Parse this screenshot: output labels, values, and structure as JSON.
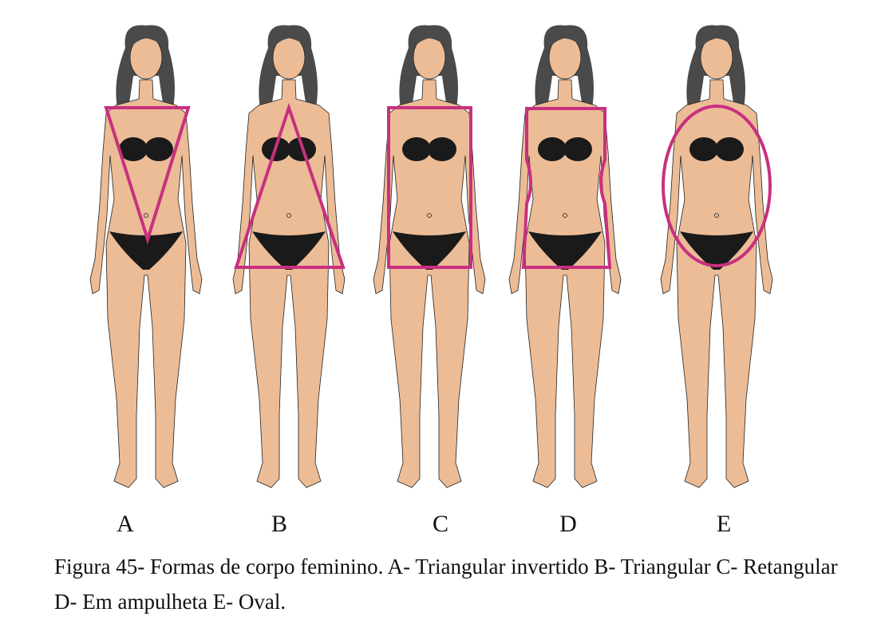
{
  "figures": [
    {
      "label": "A",
      "shape": "inverted-triangle"
    },
    {
      "label": "B",
      "shape": "triangle"
    },
    {
      "label": "C",
      "shape": "rectangle"
    },
    {
      "label": "D",
      "shape": "hourglass"
    },
    {
      "label": "E",
      "shape": "oval"
    }
  ],
  "caption": "Figura 45- Formas de corpo feminino. A- Triangular invertido B- Triangular C- Retangular D- Em ampulheta E- Oval.",
  "colors": {
    "skin": "#ecbc96",
    "hair": "#4a4a4a",
    "bikini": "#1a1a1a",
    "outline": "#c8307f"
  }
}
